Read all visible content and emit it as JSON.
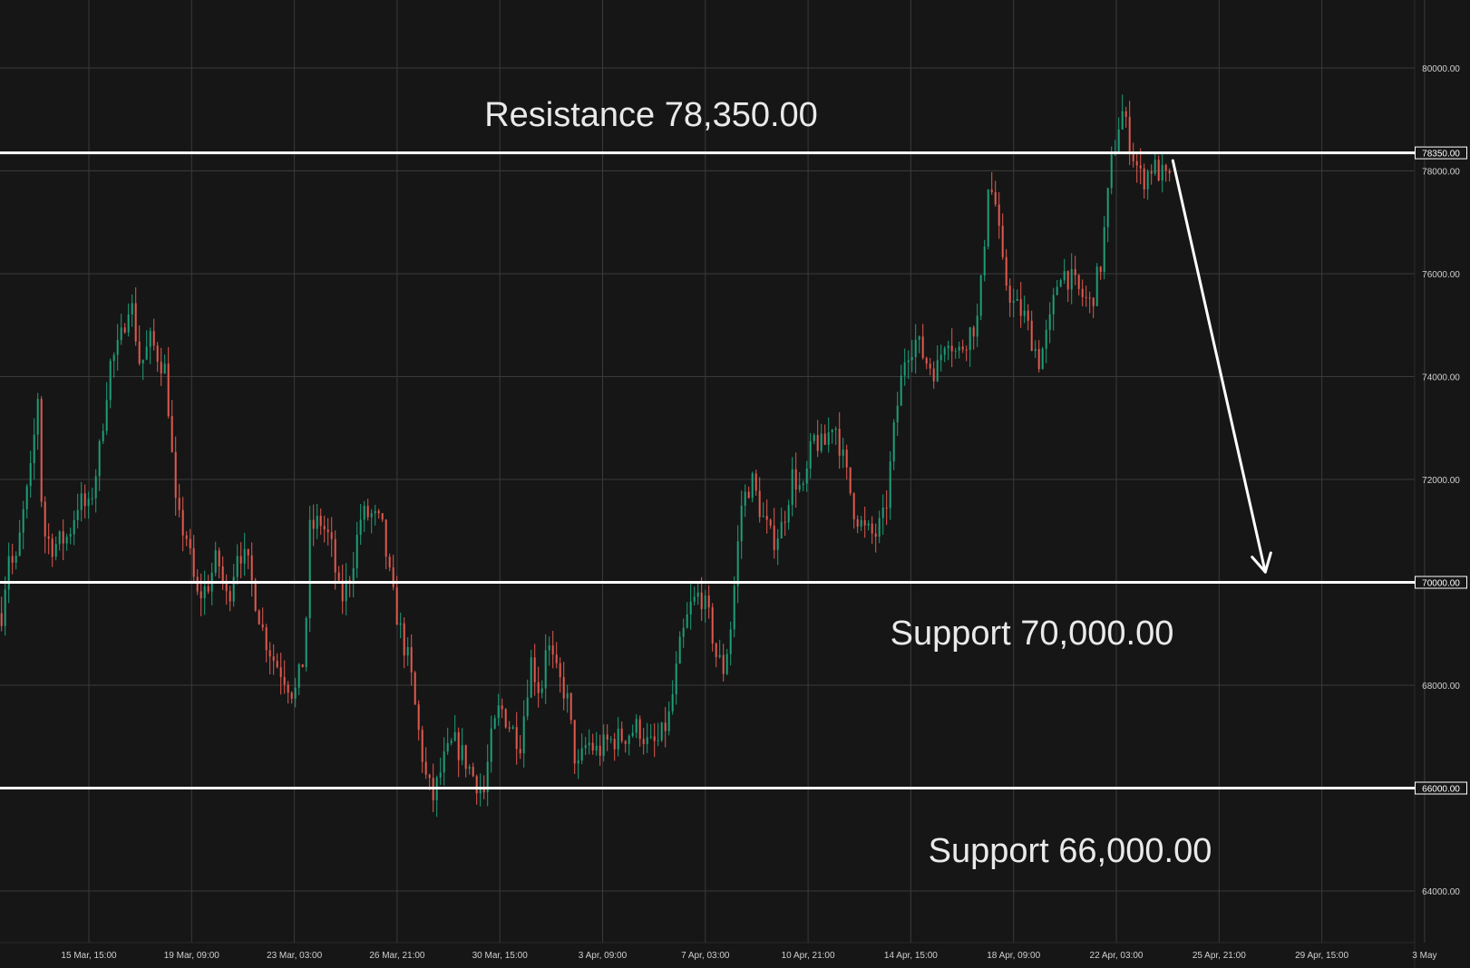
{
  "chart_data": {
    "type": "candlestick",
    "title": "",
    "xlabel": "",
    "ylabel": "",
    "ylim": [
      63000,
      81000
    ],
    "grid": true,
    "colors": {
      "background": "#161616",
      "grid": "#3a3a3a",
      "up": "#1e9e78",
      "down": "#e05a4f",
      "levels": "#ffffff",
      "arrow": "#ffffff"
    },
    "y_ticks": [
      {
        "value": 64000,
        "label": "64000.00"
      },
      {
        "value": 66000,
        "label": "66000.00"
      },
      {
        "value": 68000,
        "label": "68000.00"
      },
      {
        "value": 70000,
        "label": "70000.00"
      },
      {
        "value": 72000,
        "label": "72000.00"
      },
      {
        "value": 74000,
        "label": "74000.00"
      },
      {
        "value": 76000,
        "label": "76000.00"
      },
      {
        "value": 78000,
        "label": "78000.00"
      },
      {
        "value": 80000,
        "label": "80000.00"
      }
    ],
    "x_ticks": [
      "15 Mar, 15:00",
      "19 Mar, 09:00",
      "23 Mar, 03:00",
      "26 Mar, 21:00",
      "30 Mar, 15:00",
      "3 Apr, 09:00",
      "7 Apr, 03:00",
      "10 Apr, 21:00",
      "14 Apr, 15:00",
      "18 Apr, 09:00",
      "22 Apr, 03:00",
      "25 Apr, 21:00",
      "29 Apr, 15:00",
      "3 May"
    ],
    "levels": [
      {
        "name": "resistance",
        "value": 78350,
        "label": "78350.00",
        "annotation": "Resistance 78,350.00"
      },
      {
        "name": "support-70000",
        "value": 70000,
        "label": "70000.00",
        "annotation": "Support 70,000.00"
      },
      {
        "name": "support-66000",
        "value": 66000,
        "label": "66000.00",
        "annotation": "Support 66,000.00"
      }
    ],
    "projection_arrow": {
      "from": {
        "x_tick": 10.55,
        "value": 78200
      },
      "to": {
        "x_tick": 11.45,
        "value": 70200
      }
    },
    "price_path": [
      {
        "x": -0.85,
        "y": 69400
      },
      {
        "x": -0.78,
        "y": 70600
      },
      {
        "x": -0.72,
        "y": 70200
      },
      {
        "x": -0.65,
        "y": 71200
      },
      {
        "x": -0.55,
        "y": 72300
      },
      {
        "x": -0.5,
        "y": 73800
      },
      {
        "x": -0.45,
        "y": 71000
      },
      {
        "x": -0.35,
        "y": 70700
      },
      {
        "x": -0.2,
        "y": 70900
      },
      {
        "x": -0.1,
        "y": 71600
      },
      {
        "x": 0.0,
        "y": 71400
      },
      {
        "x": 0.1,
        "y": 72500
      },
      {
        "x": 0.2,
        "y": 74200
      },
      {
        "x": 0.3,
        "y": 74600
      },
      {
        "x": 0.4,
        "y": 75600
      },
      {
        "x": 0.5,
        "y": 74200
      },
      {
        "x": 0.6,
        "y": 74700
      },
      {
        "x": 0.75,
        "y": 74100
      },
      {
        "x": 0.85,
        "y": 71300
      },
      {
        "x": 0.95,
        "y": 70900
      },
      {
        "x": 1.05,
        "y": 69700
      },
      {
        "x": 1.15,
        "y": 69900
      },
      {
        "x": 1.25,
        "y": 70500
      },
      {
        "x": 1.35,
        "y": 69600
      },
      {
        "x": 1.45,
        "y": 70700
      },
      {
        "x": 1.55,
        "y": 70300
      },
      {
        "x": 1.7,
        "y": 69000
      },
      {
        "x": 1.8,
        "y": 68500
      },
      {
        "x": 1.9,
        "y": 68200
      },
      {
        "x": 2.0,
        "y": 67800
      },
      {
        "x": 2.1,
        "y": 68600
      },
      {
        "x": 2.15,
        "y": 71000
      },
      {
        "x": 2.25,
        "y": 71200
      },
      {
        "x": 2.35,
        "y": 70800
      },
      {
        "x": 2.45,
        "y": 69600
      },
      {
        "x": 2.55,
        "y": 70200
      },
      {
        "x": 2.65,
        "y": 71300
      },
      {
        "x": 2.75,
        "y": 71300
      },
      {
        "x": 2.85,
        "y": 71100
      },
      {
        "x": 2.95,
        "y": 69800
      },
      {
        "x": 3.05,
        "y": 68900
      },
      {
        "x": 3.12,
        "y": 68400
      },
      {
        "x": 3.2,
        "y": 67200
      },
      {
        "x": 3.28,
        "y": 66200
      },
      {
        "x": 3.35,
        "y": 65800
      },
      {
        "x": 3.45,
        "y": 66500
      },
      {
        "x": 3.55,
        "y": 66900
      },
      {
        "x": 3.65,
        "y": 66600
      },
      {
        "x": 3.75,
        "y": 66200
      },
      {
        "x": 3.85,
        "y": 65900
      },
      {
        "x": 3.9,
        "y": 66800
      },
      {
        "x": 4.0,
        "y": 67600
      },
      {
        "x": 4.1,
        "y": 67200
      },
      {
        "x": 4.2,
        "y": 66900
      },
      {
        "x": 4.3,
        "y": 68500
      },
      {
        "x": 4.4,
        "y": 67800
      },
      {
        "x": 4.45,
        "y": 68900
      },
      {
        "x": 4.55,
        "y": 68200
      },
      {
        "x": 4.65,
        "y": 67800
      },
      {
        "x": 4.75,
        "y": 66300
      },
      {
        "x": 4.85,
        "y": 66900
      },
      {
        "x": 4.95,
        "y": 66700
      },
      {
        "x": 5.05,
        "y": 66900
      },
      {
        "x": 5.2,
        "y": 67000
      },
      {
        "x": 5.35,
        "y": 67200
      },
      {
        "x": 5.45,
        "y": 66800
      },
      {
        "x": 5.55,
        "y": 66900
      },
      {
        "x": 5.65,
        "y": 67400
      },
      {
        "x": 5.75,
        "y": 68700
      },
      {
        "x": 5.85,
        "y": 69500
      },
      {
        "x": 5.95,
        "y": 69800
      },
      {
        "x": 6.05,
        "y": 69200
      },
      {
        "x": 6.1,
        "y": 68600
      },
      {
        "x": 6.18,
        "y": 68300
      },
      {
        "x": 6.25,
        "y": 69200
      },
      {
        "x": 6.35,
        "y": 71500
      },
      {
        "x": 6.45,
        "y": 72000
      },
      {
        "x": 6.55,
        "y": 71300
      },
      {
        "x": 6.65,
        "y": 70800
      },
      {
        "x": 6.75,
        "y": 71100
      },
      {
        "x": 6.85,
        "y": 72100
      },
      {
        "x": 6.95,
        "y": 71700
      },
      {
        "x": 7.05,
        "y": 72800
      },
      {
        "x": 7.15,
        "y": 72600
      },
      {
        "x": 7.25,
        "y": 73200
      },
      {
        "x": 7.35,
        "y": 72300
      },
      {
        "x": 7.45,
        "y": 71400
      },
      {
        "x": 7.55,
        "y": 71000
      },
      {
        "x": 7.65,
        "y": 70900
      },
      {
        "x": 7.75,
        "y": 71300
      },
      {
        "x": 7.85,
        "y": 73200
      },
      {
        "x": 7.95,
        "y": 74500
      },
      {
        "x": 8.05,
        "y": 74700
      },
      {
        "x": 8.15,
        "y": 74300
      },
      {
        "x": 8.25,
        "y": 74100
      },
      {
        "x": 8.35,
        "y": 74900
      },
      {
        "x": 8.45,
        "y": 74400
      },
      {
        "x": 8.55,
        "y": 74800
      },
      {
        "x": 8.65,
        "y": 75100
      },
      {
        "x": 8.7,
        "y": 76100
      },
      {
        "x": 8.75,
        "y": 77800
      },
      {
        "x": 8.82,
        "y": 77400
      },
      {
        "x": 8.9,
        "y": 76000
      },
      {
        "x": 9.0,
        "y": 75400
      },
      {
        "x": 9.1,
        "y": 75200
      },
      {
        "x": 9.2,
        "y": 74600
      },
      {
        "x": 9.25,
        "y": 74300
      },
      {
        "x": 9.35,
        "y": 75000
      },
      {
        "x": 9.45,
        "y": 76100
      },
      {
        "x": 9.55,
        "y": 75900
      },
      {
        "x": 9.65,
        "y": 75600
      },
      {
        "x": 9.75,
        "y": 75400
      },
      {
        "x": 9.85,
        "y": 76200
      },
      {
        "x": 9.95,
        "y": 78100
      },
      {
        "x": 10.05,
        "y": 79200
      },
      {
        "x": 10.15,
        "y": 78400
      },
      {
        "x": 10.25,
        "y": 77800
      },
      {
        "x": 10.35,
        "y": 78100
      },
      {
        "x": 10.45,
        "y": 77900
      },
      {
        "x": 10.55,
        "y": 77700
      }
    ]
  },
  "annotations": {
    "resistance": "Resistance 78,350.00",
    "support_70000": "Support 70,000.00",
    "support_66000": "Support 66,000.00"
  }
}
